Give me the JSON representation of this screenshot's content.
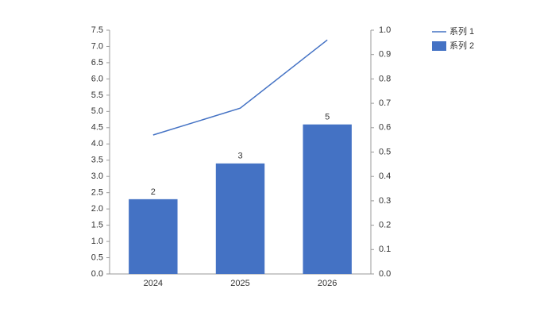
{
  "chart_data": {
    "type": "bar-line",
    "categories": [
      "2024",
      "2025",
      "2026"
    ],
    "series": [
      {
        "name": "系列 1",
        "type": "line",
        "axis": "y2",
        "color": "#4472c4",
        "values": [
          0.57,
          0.68,
          0.96
        ]
      },
      {
        "name": "系列 2",
        "type": "bar",
        "color": "#4472c4",
        "values": [
          2.3,
          3.4,
          4.6
        ],
        "value_labels": [
          "2",
          "3",
          "5"
        ]
      }
    ],
    "ylim": [
      0,
      7.5
    ],
    "yticks": [
      {
        "value": 0,
        "label": "0.0"
      },
      0.5,
      {
        "value": 1,
        "label": "1.0"
      },
      1.5,
      {
        "value": 2,
        "label": "2.0"
      },
      2.5,
      {
        "value": 3,
        "label": "3.0"
      },
      3.5,
      {
        "value": 4,
        "label": "4.0"
      },
      4.5,
      {
        "value": 5,
        "label": "5.0"
      },
      5.5,
      {
        "value": 6,
        "label": "6.0"
      },
      6.5,
      {
        "value": 7,
        "label": "7.0"
      },
      7.5
    ],
    "y2lim": [
      0,
      1
    ],
    "y2ticks": [
      {
        "value": 0,
        "label": "0.0"
      },
      0.1,
      0.2,
      0.3,
      0.4,
      0.5,
      0.6,
      0.7,
      0.8,
      0.9,
      {
        "value": 1,
        "label": "1.0"
      }
    ],
    "legend": "top-right"
  }
}
